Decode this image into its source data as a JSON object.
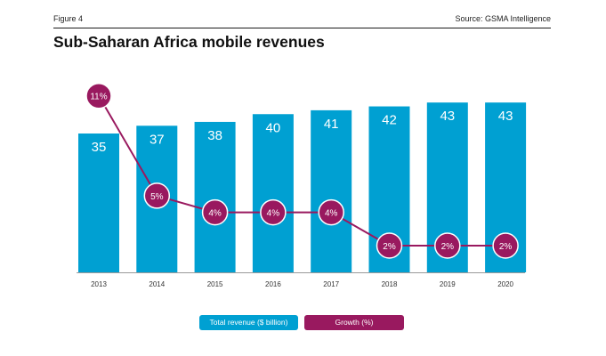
{
  "header": {
    "figure_label": "Figure 4",
    "source": "Source: GSMA Intelligence",
    "title": "Sub-Saharan Africa mobile revenues"
  },
  "colors": {
    "revenue": "#00a0d2",
    "growth": "#99195f"
  },
  "chart_data": {
    "type": "bar",
    "title": "Sub-Saharan Africa mobile revenues",
    "categories": [
      "2013",
      "2014",
      "2015",
      "2016",
      "2017",
      "2018",
      "2019",
      "2020"
    ],
    "series": [
      {
        "name": "Total revenue ($ billion)",
        "type": "bar",
        "values": [
          35,
          37,
          38,
          40,
          41,
          42,
          43,
          43
        ],
        "labels": [
          "35",
          "37",
          "38",
          "40",
          "41",
          "42",
          "43",
          "43"
        ]
      },
      {
        "name": "Growth (%)",
        "type": "line",
        "values": [
          11,
          5,
          4,
          4,
          4,
          2,
          2,
          2
        ],
        "labels": [
          "11%",
          "5%",
          "4%",
          "4%",
          "4%",
          "2%",
          "2%",
          "2%"
        ]
      }
    ],
    "legend": [
      "Total revenue ($ billion)",
      "Growth (%)"
    ],
    "legend_position": "bottom-center",
    "grid": false
  }
}
